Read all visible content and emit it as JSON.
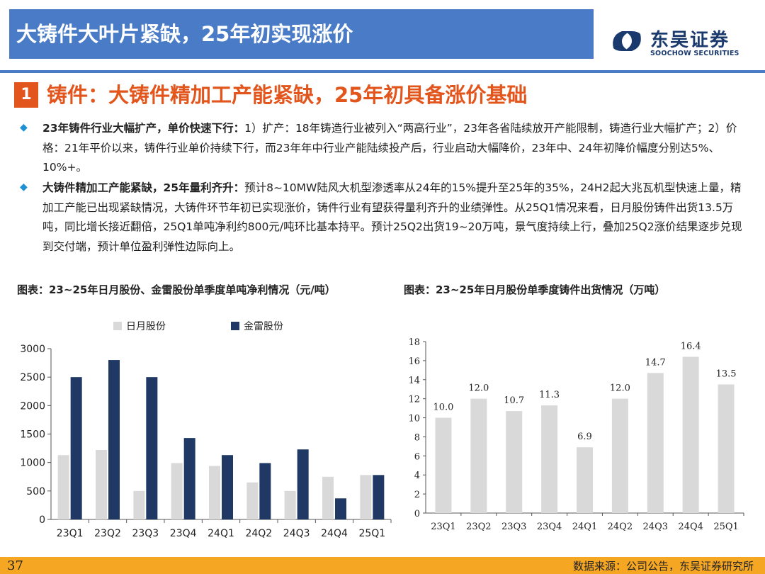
{
  "header": {
    "title": "大铸件大叶片紧缺，25年初实现涨价",
    "logo_name": "东吴证券",
    "logo_en": "SOOCHOW SECURITIES"
  },
  "section": {
    "number": "1",
    "title": "铸件：大铸件精加工产能紧缺，25年初具备涨价基础"
  },
  "bullets": [
    {
      "bold": "23年铸件行业大幅扩产，单价快速下行：",
      "text": "1）扩产：18年铸造行业被列入“两高行业”，23年各省陆续放开产能限制，铸造行业大幅扩产；2）价格：21年平价以来，铸件行业单价持续下行，而23年年中行业产能陆续投产后，行业启动大幅降价，23年中、24年初降价幅度分别达5%、10%+。"
    },
    {
      "bold": "大铸件精加工产能紧缺，25年量利齐升：",
      "text": "预计8~10MW陆风大机型渗透率从24年的15%提升至25年的35%，24H2起大兆瓦机型快速上量，精加工产能已出现紧缺情况，大铸件环节年初已实现涨价，铸件行业有望获得量利齐升的业绩弹性。从25Q1情况来看，日月股份铸件出货13.5万吨，同比增长接近翻倍，25Q1单吨净利约800元/吨环比基本持平。预计25Q2出货19~20万吨，景气度持续上行，叠加25Q2涨价结果逐步兑现到交付端，预计单位盈利弹性边际向上。"
    }
  ],
  "captions": {
    "left": "图表：23~25年日月股份、金雷股份单季度单吨净利情况（元/吨）",
    "right": "图表：23~25年日月股份单季度铸件出货情况（万吨）"
  },
  "chart_data": [
    {
      "type": "bar",
      "categories": [
        "23Q1",
        "23Q2",
        "23Q3",
        "23Q4",
        "24Q1",
        "24Q2",
        "24Q3",
        "24Q4",
        "25Q1"
      ],
      "series": [
        {
          "name": "日月股份",
          "color": "#d9d9d9",
          "values": [
            1130,
            1220,
            500,
            990,
            940,
            650,
            500,
            750,
            780
          ]
        },
        {
          "name": "金雷股份",
          "color": "#1f3864",
          "values": [
            2500,
            2800,
            2500,
            1430,
            1130,
            990,
            1230,
            370,
            780
          ]
        }
      ],
      "ylim": [
        0,
        3000
      ],
      "yticks": [
        0,
        500,
        1000,
        1500,
        2000,
        2500,
        3000
      ],
      "legend": "top-left",
      "grid": false
    },
    {
      "type": "bar",
      "categories": [
        "23Q1",
        "23Q2",
        "23Q3",
        "23Q4",
        "24Q1",
        "24Q2",
        "24Q3",
        "24Q4",
        "25Q1"
      ],
      "series": [
        {
          "color": "#d9d9d9",
          "values": [
            10.0,
            12.0,
            10.7,
            11.3,
            6.9,
            12.0,
            14.7,
            16.4,
            13.5
          ]
        }
      ],
      "data_labels": [
        "10.0",
        "12.0",
        "10.7",
        "11.3",
        "6.9",
        "12.0",
        "14.7",
        "16.4",
        "13.5"
      ],
      "ylim": [
        0,
        18
      ],
      "yticks": [
        0,
        2,
        4,
        6,
        8,
        10,
        12,
        14,
        16,
        18
      ],
      "grid": false
    }
  ],
  "footer": {
    "page_number": "37",
    "source": "数据来源：公司公告，东吴证券研究所"
  }
}
